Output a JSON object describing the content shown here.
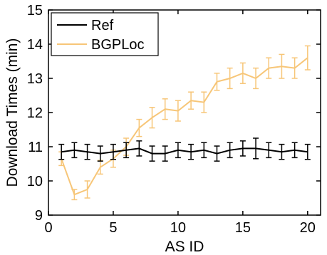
{
  "chart_data": {
    "type": "line",
    "title": "",
    "xlabel": "AS ID",
    "ylabel": "Download Times (min)",
    "xlim": [
      0,
      21
    ],
    "ylim": [
      9,
      15
    ],
    "x_ticks": [
      0,
      5,
      10,
      15,
      20
    ],
    "y_ticks": [
      9,
      10,
      11,
      12,
      13,
      14,
      15
    ],
    "grid": false,
    "legend_position": "top-left",
    "x": [
      1,
      2,
      3,
      4,
      5,
      6,
      7,
      8,
      9,
      10,
      11,
      12,
      13,
      14,
      15,
      16,
      17,
      18,
      19,
      20
    ],
    "series": [
      {
        "name": "Ref",
        "color": "#000000",
        "values": [
          10.85,
          10.9,
          10.85,
          10.8,
          10.85,
          10.9,
          10.95,
          10.8,
          10.8,
          10.9,
          10.85,
          10.9,
          10.8,
          10.9,
          10.95,
          10.95,
          10.9,
          10.85,
          10.9,
          10.85
        ],
        "errors": [
          0.22,
          0.22,
          0.22,
          0.22,
          0.22,
          0.22,
          0.22,
          0.22,
          0.22,
          0.22,
          0.22,
          0.22,
          0.22,
          0.22,
          0.22,
          0.3,
          0.22,
          0.22,
          0.22,
          0.22
        ]
      },
      {
        "name": "BGPLoc",
        "color": "#f7c678",
        "values": [
          10.65,
          9.6,
          9.75,
          10.4,
          10.65,
          11.0,
          11.55,
          11.85,
          12.1,
          12.05,
          12.35,
          12.3,
          12.9,
          13.0,
          13.15,
          13.0,
          13.3,
          13.35,
          13.3,
          13.6
        ],
        "errors": [
          0.2,
          0.15,
          0.25,
          0.2,
          0.25,
          0.25,
          0.25,
          0.3,
          0.3,
          0.3,
          0.25,
          0.3,
          0.25,
          0.3,
          0.3,
          0.3,
          0.3,
          0.35,
          0.3,
          0.35
        ]
      }
    ]
  }
}
